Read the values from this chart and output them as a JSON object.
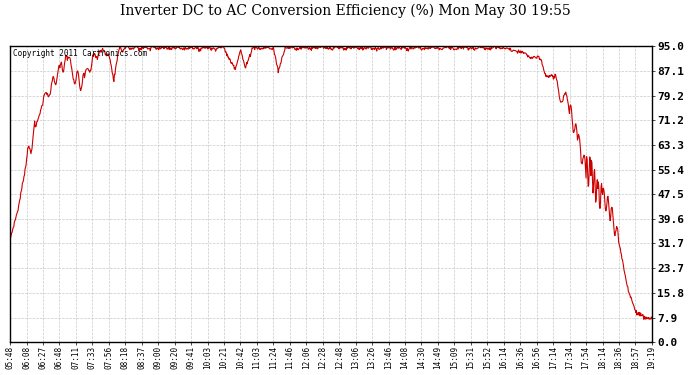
{
  "title": "Inverter DC to AC Conversion Efficiency (%) Mon May 30 19:55",
  "copyright": "Copyright 2011 Cartronics.com",
  "line_color": "#cc0000",
  "bg_color": "#ffffff",
  "plot_bg_color": "#ffffff",
  "grid_color": "#bbbbbb",
  "yticks": [
    0.0,
    7.9,
    15.8,
    23.7,
    31.7,
    39.6,
    47.5,
    55.4,
    63.3,
    71.2,
    79.2,
    87.1,
    95.0
  ],
  "xtick_labels": [
    "05:48",
    "06:08",
    "06:27",
    "06:48",
    "07:11",
    "07:33",
    "07:56",
    "08:18",
    "08:37",
    "09:00",
    "09:20",
    "09:41",
    "10:03",
    "10:21",
    "10:42",
    "11:03",
    "11:24",
    "11:46",
    "12:06",
    "12:28",
    "12:48",
    "13:06",
    "13:26",
    "13:46",
    "14:08",
    "14:30",
    "14:49",
    "15:09",
    "15:31",
    "15:52",
    "16:14",
    "16:36",
    "16:56",
    "17:14",
    "17:34",
    "17:54",
    "18:14",
    "18:36",
    "18:57",
    "19:19"
  ],
  "ylim": [
    0.0,
    95.0
  ],
  "line_width": 0.8,
  "title_fontsize": 10,
  "ytick_fontsize": 8,
  "xtick_fontsize": 5.5
}
